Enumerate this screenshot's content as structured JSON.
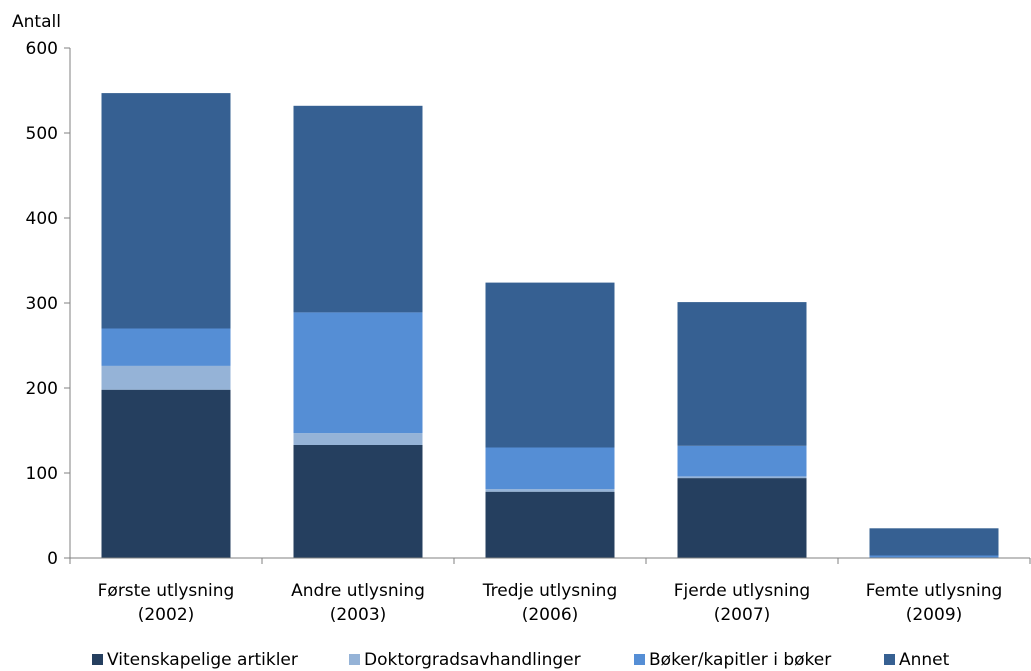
{
  "chart_data": {
    "type": "bar",
    "stacked": true,
    "ylabel": "Antall",
    "ylim": [
      0,
      600
    ],
    "yticks": [
      0,
      100,
      200,
      300,
      400,
      500,
      600
    ],
    "grid": false,
    "legend_position": "bottom",
    "categories": [
      [
        "Første utlysning",
        "(2002)"
      ],
      [
        "Andre utlysning",
        "(2003)"
      ],
      [
        "Tredje utlysning",
        "(2006)"
      ],
      [
        "Fjerde utlysning",
        "(2007)"
      ],
      [
        "Femte utlysning",
        "(2009)"
      ]
    ],
    "series": [
      {
        "name": "Vitenskapelige artikler",
        "color": "#253f5f",
        "values": [
          198,
          133,
          78,
          94,
          0
        ]
      },
      {
        "name": "Doktorgradsavhandlinger",
        "color": "#95b3d7",
        "values": [
          28,
          14,
          3,
          2,
          0
        ]
      },
      {
        "name": "Bøker/kapitler i bøker",
        "color": "#558ed5",
        "values": [
          44,
          142,
          49,
          36,
          3
        ]
      },
      {
        "name": "Annet",
        "color": "#366092",
        "values": [
          277,
          243,
          194,
          169,
          32
        ]
      }
    ]
  }
}
